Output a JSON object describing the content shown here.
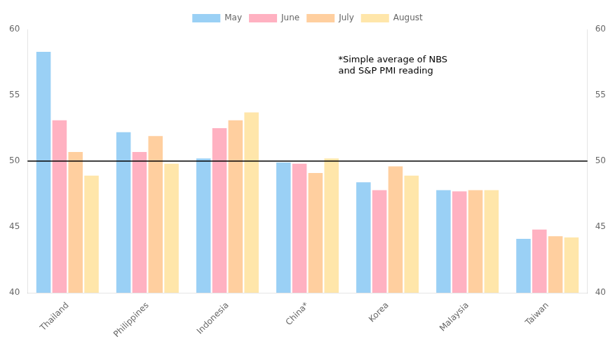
{
  "chart_data": {
    "type": "bar",
    "categories": [
      "Thailand",
      "Philippines",
      "Indonesia",
      "China*",
      "Korea",
      "Malaysia",
      "Taiwan"
    ],
    "series": [
      {
        "name": "May",
        "values": [
          58.3,
          52.2,
          50.2,
          49.9,
          48.4,
          47.8,
          44.1
        ]
      },
      {
        "name": "June",
        "values": [
          53.1,
          50.7,
          52.5,
          49.8,
          47.8,
          47.7,
          44.8
        ]
      },
      {
        "name": "July",
        "values": [
          50.7,
          51.9,
          53.1,
          49.1,
          49.6,
          47.8,
          44.3
        ]
      },
      {
        "name": "August",
        "values": [
          48.9,
          49.8,
          53.7,
          50.2,
          48.9,
          47.8,
          44.2
        ]
      }
    ],
    "ylim": [
      40,
      60
    ],
    "yticks": [
      40,
      45,
      50,
      55,
      60
    ],
    "y2lim": [
      40,
      60
    ],
    "y2ticks": [
      40,
      45,
      50,
      55,
      60
    ],
    "hline": 50,
    "annotation": "*Simple average of NBS\nand S&P PMI reading",
    "grid": false,
    "legend": "top"
  }
}
